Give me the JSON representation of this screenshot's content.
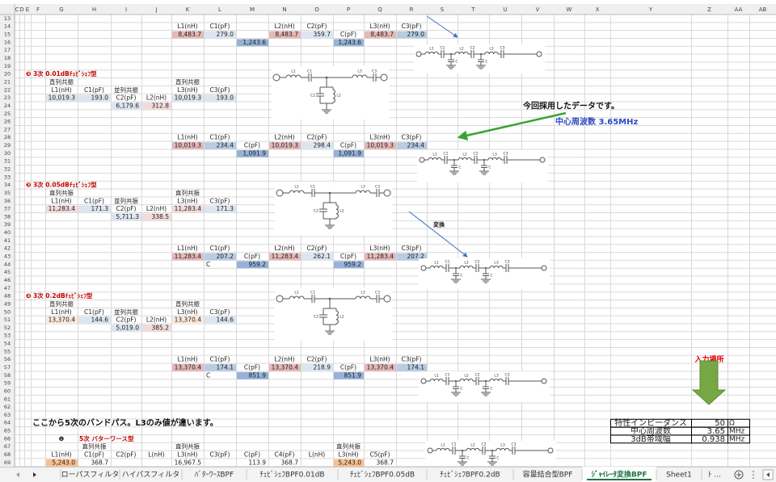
{
  "columns": [
    "C",
    "D",
    "E",
    "F",
    "G",
    "H",
    "I",
    "J",
    "K",
    "L",
    "M",
    "N",
    "O",
    "P",
    "Q",
    "R",
    "S",
    "T",
    "U",
    "V",
    "W",
    "X",
    "Y",
    "Z",
    "AA",
    "AB"
  ],
  "rows": [
    13,
    14,
    15,
    16,
    17,
    18,
    19,
    20,
    21,
    22,
    23,
    24,
    25,
    26,
    27,
    28,
    29,
    30,
    31,
    32,
    33,
    34,
    35,
    36,
    37,
    38,
    39,
    40,
    41,
    42,
    43,
    44,
    45,
    46,
    47,
    48,
    49,
    50,
    51,
    52,
    53,
    54,
    55,
    56,
    57,
    58,
    59,
    60,
    61,
    62,
    63,
    64,
    65,
    66,
    67,
    68,
    69
  ],
  "cells": [
    {
      "row": 14,
      "col": "K",
      "text": "L1(nH)"
    },
    {
      "row": 14,
      "col": "L",
      "text": "C1(pF)"
    },
    {
      "row": 14,
      "col": "N",
      "text": "L2(nH)"
    },
    {
      "row": 14,
      "col": "O",
      "text": "C2(pF)"
    },
    {
      "row": 14,
      "col": "Q",
      "text": "L3(nH)"
    },
    {
      "row": 14,
      "col": "R",
      "text": "C3(pF)"
    },
    {
      "row": 15,
      "col": "K",
      "text": "8,483.7",
      "bg": "#e6b8b7"
    },
    {
      "row": 15,
      "col": "L",
      "text": "279.0",
      "bg": "#dce6f1"
    },
    {
      "row": 15,
      "col": "N",
      "text": "8,483.7",
      "bg": "#e6b8b7"
    },
    {
      "row": 15,
      "col": "O",
      "text": "359.7",
      "bg": "#dce6f1"
    },
    {
      "row": 15,
      "col": "P",
      "text": "C(pF)"
    },
    {
      "row": 15,
      "col": "Q",
      "text": "8,483.7",
      "bg": "#e6b8b7"
    },
    {
      "row": 15,
      "col": "R",
      "text": "279.0",
      "bg": "#b8cce4"
    },
    {
      "row": 16,
      "col": "M",
      "text": "1,243.6",
      "bg": "#95b3d7"
    },
    {
      "row": 16,
      "col": "P",
      "text": "1,243.6",
      "bg": "#95b3d7"
    },
    {
      "row": 20,
      "col": "E",
      "text": "❸ 3次 0.01dBﾁｪﾋﾞｼｪﾌ型",
      "kind": "title"
    },
    {
      "row": 21,
      "col": "G",
      "text": "直列共振"
    },
    {
      "row": 21,
      "col": "K",
      "text": "直列共振"
    },
    {
      "row": 22,
      "col": "G",
      "text": "L1(nH)"
    },
    {
      "row": 22,
      "col": "H",
      "text": "C1(pF)"
    },
    {
      "row": 22,
      "col": "I",
      "text": "並列共振"
    },
    {
      "row": 22,
      "col": "K",
      "text": "L3(nH)"
    },
    {
      "row": 22,
      "col": "L",
      "text": "C3(pF)"
    },
    {
      "row": 23,
      "col": "G",
      "text": "10,019.3",
      "bg": "#dce6f1"
    },
    {
      "row": 23,
      "col": "H",
      "text": "193.0",
      "bg": "#dce6f1"
    },
    {
      "row": 23,
      "col": "I",
      "text": "C2(pF)"
    },
    {
      "row": 23,
      "col": "J",
      "text": "L2(nH)"
    },
    {
      "row": 23,
      "col": "K",
      "text": "10,019.3",
      "bg": "#dce6f1"
    },
    {
      "row": 23,
      "col": "L",
      "text": "193.0",
      "bg": "#dce6f1"
    },
    {
      "row": 24,
      "col": "I",
      "text": "6,179.6",
      "bg": "#dce6f1"
    },
    {
      "row": 24,
      "col": "J",
      "text": "312.8",
      "bg": "#f2dcdb"
    },
    {
      "row": 24,
      "col": "V",
      "text": "今回採用したデータです。",
      "kind": "note"
    },
    {
      "row": 26,
      "col": "W",
      "text": "中心周波数 3.65MHz",
      "kind": "blue"
    },
    {
      "row": 28,
      "col": "K",
      "text": "L1(nH)"
    },
    {
      "row": 28,
      "col": "L",
      "text": "C1(pF)"
    },
    {
      "row": 28,
      "col": "N",
      "text": "L2(nH)"
    },
    {
      "row": 28,
      "col": "O",
      "text": "C2(pF)"
    },
    {
      "row": 28,
      "col": "Q",
      "text": "L3(nH)"
    },
    {
      "row": 28,
      "col": "R",
      "text": "C3(pF)"
    },
    {
      "row": 29,
      "col": "K",
      "text": "10,019.3",
      "bg": "#e6b8b7"
    },
    {
      "row": 29,
      "col": "L",
      "text": "234.4",
      "bg": "#b8cce4"
    },
    {
      "row": 29,
      "col": "M",
      "text": "C(pF)"
    },
    {
      "row": 29,
      "col": "N",
      "text": "10,019.3",
      "bg": "#e6b8b7"
    },
    {
      "row": 29,
      "col": "O",
      "text": "298.4",
      "bg": "#dce6f1"
    },
    {
      "row": 29,
      "col": "P",
      "text": "C(pF)"
    },
    {
      "row": 29,
      "col": "Q",
      "text": "10,019.3",
      "bg": "#e6b8b7"
    },
    {
      "row": 29,
      "col": "R",
      "text": "234.4",
      "bg": "#b8cce4"
    },
    {
      "row": 30,
      "col": "M",
      "text": "1,091.9",
      "bg": "#95b3d7"
    },
    {
      "row": 30,
      "col": "P",
      "text": "1,091.9",
      "bg": "#95b3d7"
    },
    {
      "row": 34,
      "col": "E",
      "text": "❸ 3次 0.05dBﾁｪﾋﾞｼｪﾌ型",
      "kind": "title"
    },
    {
      "row": 35,
      "col": "G",
      "text": "直列共振"
    },
    {
      "row": 35,
      "col": "K",
      "text": "直列共振"
    },
    {
      "row": 36,
      "col": "G",
      "text": "L1(nH)"
    },
    {
      "row": 36,
      "col": "H",
      "text": "C1(pF)"
    },
    {
      "row": 36,
      "col": "I",
      "text": "並列共振"
    },
    {
      "row": 36,
      "col": "K",
      "text": "L3(nH)"
    },
    {
      "row": 36,
      "col": "L",
      "text": "C3(pF)"
    },
    {
      "row": 37,
      "col": "G",
      "text": "11,283.4",
      "bg": "#f2dcdb"
    },
    {
      "row": 37,
      "col": "H",
      "text": "171.3",
      "bg": "#dce6f1"
    },
    {
      "row": 37,
      "col": "I",
      "text": "C2(pF)"
    },
    {
      "row": 37,
      "col": "J",
      "text": "L2(nH)"
    },
    {
      "row": 37,
      "col": "K",
      "text": "11,283.4",
      "bg": "#f2dcdb"
    },
    {
      "row": 37,
      "col": "L",
      "text": "171.3",
      "bg": "#dce6f1"
    },
    {
      "row": 38,
      "col": "I",
      "text": "5,711.3",
      "bg": "#dce6f1"
    },
    {
      "row": 38,
      "col": "J",
      "text": "338.5",
      "bg": "#f2dcdb"
    },
    {
      "row": 39,
      "col": "S",
      "text": "変換",
      "kind": "bold"
    },
    {
      "row": 42,
      "col": "K",
      "text": "L1(nH)"
    },
    {
      "row": 42,
      "col": "L",
      "text": "C1(pF)"
    },
    {
      "row": 42,
      "col": "N",
      "text": "L2(nH)"
    },
    {
      "row": 42,
      "col": "O",
      "text": "C2(pF)"
    },
    {
      "row": 42,
      "col": "Q",
      "text": "L3(nH)"
    },
    {
      "row": 42,
      "col": "R",
      "text": "C3(pF)"
    },
    {
      "row": 43,
      "col": "K",
      "text": "11,283.4",
      "bg": "#e6b8b7"
    },
    {
      "row": 43,
      "col": "L",
      "text": "207.2",
      "bg": "#b8cce4"
    },
    {
      "row": 43,
      "col": "M",
      "text": "C(pF)"
    },
    {
      "row": 43,
      "col": "N",
      "text": "11,283.4",
      "bg": "#e6b8b7"
    },
    {
      "row": 43,
      "col": "O",
      "text": "262.1",
      "bg": "#dce6f1"
    },
    {
      "row": 43,
      "col": "P",
      "text": "C(pF)"
    },
    {
      "row": 43,
      "col": "Q",
      "text": "11,283.4",
      "bg": "#e6b8b7"
    },
    {
      "row": 43,
      "col": "R",
      "text": "207.2",
      "bg": "#b8cce4"
    },
    {
      "row": 44,
      "col": "L",
      "text": "C",
      "kind": "left"
    },
    {
      "row": 44,
      "col": "M",
      "text": "959.2",
      "bg": "#95b3d7"
    },
    {
      "row": 44,
      "col": "P",
      "text": "959.2",
      "bg": "#95b3d7"
    },
    {
      "row": 48,
      "col": "E",
      "text": "❸ 3次 0.2dBﾁｪﾋﾞｼｪﾌ型",
      "kind": "title"
    },
    {
      "row": 49,
      "col": "G",
      "text": "直列共振"
    },
    {
      "row": 49,
      "col": "K",
      "text": "直列共振"
    },
    {
      "row": 50,
      "col": "G",
      "text": "L1(nH)"
    },
    {
      "row": 50,
      "col": "H",
      "text": "C1(pF)"
    },
    {
      "row": 50,
      "col": "I",
      "text": "並列共振"
    },
    {
      "row": 50,
      "col": "K",
      "text": "L3(nH)"
    },
    {
      "row": 50,
      "col": "L",
      "text": "C3(pF)"
    },
    {
      "row": 51,
      "col": "G",
      "text": "13,370.4",
      "bg": "#fde9d9"
    },
    {
      "row": 51,
      "col": "H",
      "text": "144.6",
      "bg": "#dce6f1"
    },
    {
      "row": 51,
      "col": "I",
      "text": "C2(pF)"
    },
    {
      "row": 51,
      "col": "J",
      "text": "L2(nH)"
    },
    {
      "row": 51,
      "col": "K",
      "text": "13,370.4",
      "bg": "#fde9d9"
    },
    {
      "row": 51,
      "col": "L",
      "text": "144.6",
      "bg": "#dce6f1"
    },
    {
      "row": 52,
      "col": "I",
      "text": "5,019.0",
      "bg": "#dce6f1"
    },
    {
      "row": 52,
      "col": "J",
      "text": "385.2",
      "bg": "#f2dcdb"
    },
    {
      "row": 56,
      "col": "K",
      "text": "L1(nH)"
    },
    {
      "row": 56,
      "col": "L",
      "text": "C1(pF)"
    },
    {
      "row": 56,
      "col": "N",
      "text": "L2(nH)"
    },
    {
      "row": 56,
      "col": "O",
      "text": "C2(pF)"
    },
    {
      "row": 56,
      "col": "Q",
      "text": "L3(nH)"
    },
    {
      "row": 56,
      "col": "R",
      "text": "C3(pF)"
    },
    {
      "row": 56,
      "col": "Z",
      "text": "入力場所",
      "kind": "red"
    },
    {
      "row": 57,
      "col": "K",
      "text": "13,370.4",
      "bg": "#e6b8b7"
    },
    {
      "row": 57,
      "col": "L",
      "text": "174.1",
      "bg": "#b8cce4"
    },
    {
      "row": 57,
      "col": "M",
      "text": "C(pF)"
    },
    {
      "row": 57,
      "col": "N",
      "text": "13,370.4",
      "bg": "#e6b8b7"
    },
    {
      "row": 57,
      "col": "O",
      "text": "218.9",
      "bg": "#dce6f1"
    },
    {
      "row": 57,
      "col": "P",
      "text": "C(pF)"
    },
    {
      "row": 57,
      "col": "Q",
      "text": "13,370.4",
      "bg": "#e6b8b7"
    },
    {
      "row": 57,
      "col": "R",
      "text": "174.1",
      "bg": "#b8cce4"
    },
    {
      "row": 58,
      "col": "L",
      "text": "C",
      "kind": "left"
    },
    {
      "row": 58,
      "col": "M",
      "text": "851.9",
      "bg": "#95b3d7"
    },
    {
      "row": 58,
      "col": "P",
      "text": "851.9",
      "bg": "#95b3d7"
    },
    {
      "row": 64,
      "col": "F",
      "text": "ここから5次のバンドパス。L3のみ値が違います。",
      "kind": "note"
    },
    {
      "row": 64,
      "col": "Y",
      "text": "特性インピーダンス",
      "kind": "box"
    },
    {
      "row": 64,
      "col": "Z",
      "text": "50",
      "kind": "boxnum"
    },
    {
      "row": 64,
      "col": "AA",
      "text": "Ω",
      "kind": "boxunit"
    },
    {
      "row": 65,
      "col": "Y",
      "text": "中心周波数",
      "kind": "box"
    },
    {
      "row": 65,
      "col": "Z",
      "text": "3.65",
      "kind": "boxnum"
    },
    {
      "row": 65,
      "col": "AA",
      "text": "MHz",
      "kind": "boxunit"
    },
    {
      "row": 66,
      "col": "Y",
      "text": "3dB帯域幅",
      "kind": "box"
    },
    {
      "row": 66,
      "col": "Z",
      "text": "0.938",
      "kind": "boxnum"
    },
    {
      "row": 66,
      "col": "AA",
      "text": "MHz",
      "kind": "boxunit"
    },
    {
      "row": 66,
      "col": "G",
      "text": "❶"
    },
    {
      "row": 66,
      "col": "H",
      "text": "5次 バターワース型",
      "kind": "title"
    },
    {
      "row": 67,
      "col": "H",
      "text": "直列共振"
    },
    {
      "row": 67,
      "col": "K",
      "text": "直列共振"
    },
    {
      "row": 67,
      "col": "P",
      "text": "直列共振"
    },
    {
      "row": 68,
      "col": "G",
      "text": "L1(nH)"
    },
    {
      "row": 68,
      "col": "H",
      "text": "C1(pF)"
    },
    {
      "row": 68,
      "col": "I",
      "text": "C2(pF)"
    },
    {
      "row": 68,
      "col": "J",
      "text": "L(nH)"
    },
    {
      "row": 68,
      "col": "K",
      "text": "L3(nH)"
    },
    {
      "row": 68,
      "col": "L",
      "text": "C3(pF)"
    },
    {
      "row": 68,
      "col": "M",
      "text": "C(pF)"
    },
    {
      "row": 68,
      "col": "N",
      "text": "C4(pF)"
    },
    {
      "row": 68,
      "col": "O",
      "text": "L(nH)"
    },
    {
      "row": 68,
      "col": "P",
      "text": "L3(nH)"
    },
    {
      "row": 68,
      "col": "Q",
      "text": "C5(pF)"
    },
    {
      "row": 69,
      "col": "G",
      "text": "5,243.0",
      "bg": "#fabf8f"
    },
    {
      "row": 69,
      "col": "H",
      "text": "368.7"
    },
    {
      "row": 69,
      "col": "K",
      "text": "16,967.5"
    },
    {
      "row": 69,
      "col": "M",
      "text": "113.9"
    },
    {
      "row": 69,
      "col": "N",
      "text": "368.7"
    },
    {
      "row": 69,
      "col": "P",
      "text": "5,243.0",
      "bg": "#fabf8f"
    },
    {
      "row": 69,
      "col": "Q",
      "text": "368.7"
    }
  ],
  "schematics": {
    "t_type": [
      "L1",
      "C1",
      "C2",
      "L2",
      "L3",
      "C3"
    ],
    "ladder": [
      "L1",
      "C1",
      "C",
      "L2",
      "C2",
      "C",
      "L3",
      "C3"
    ]
  },
  "tabs": {
    "items": [
      "ローパスフィルタ",
      "ハイパスフィルタ",
      "ﾊﾞﾀｰﾜｰｽBPF",
      "ﾁｪﾋﾞｼｪﾌBPF0.01dB",
      "ﾁｪﾋﾞｼｪﾌBPF0.05dB",
      "ﾁｪﾋﾞｼｪﾌBPF0.2dB",
      "容量結合型BPF",
      "ｼﾞｬｲﾚｰﾀ変換BPF",
      "Sheet1",
      "ﾄ ..."
    ],
    "active": 7
  }
}
